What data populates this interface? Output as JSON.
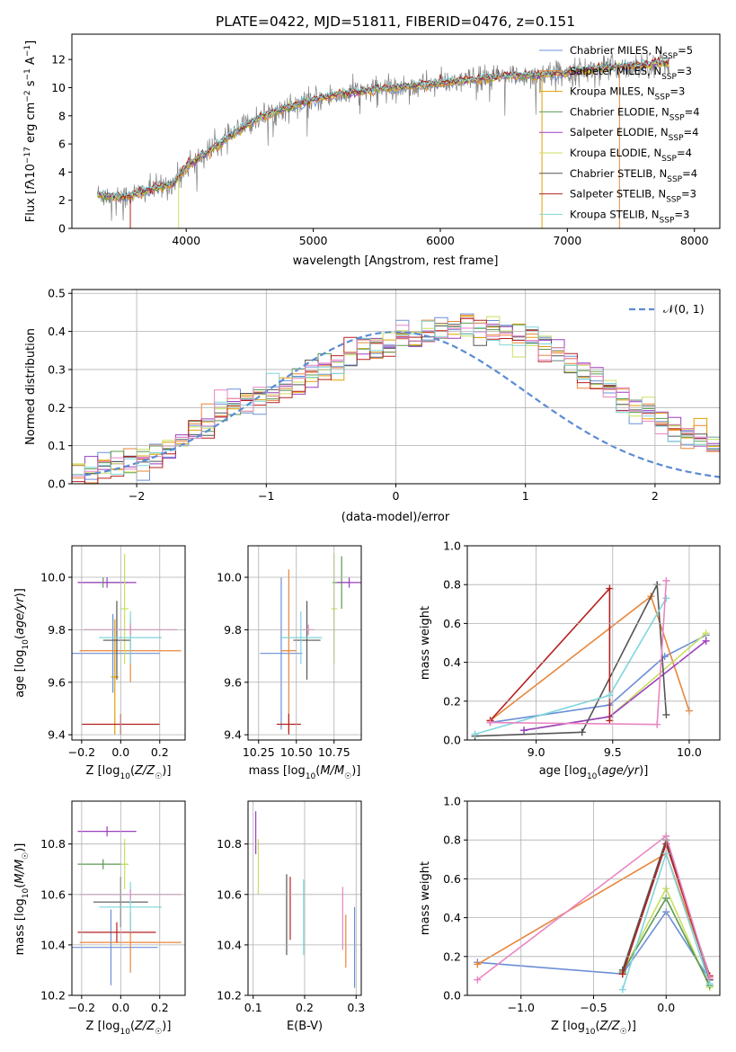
{
  "title": "PLATE=0422, MJD=51811, FIBERID=0476, z=0.151",
  "colors": {
    "chabrier_miles": "#6b8fd6",
    "salpeter_miles": "#e8863a",
    "kroupa_miles": "#e0a000",
    "chabrier_elodie": "#5a9a50",
    "salpeter_elodie": "#9b3fbf",
    "kroupa_elodie": "#c8e060",
    "chabrier_stelib": "#555555",
    "salpeter_stelib": "#b52020",
    "kroupa_stelib": "#7fd6dc",
    "grid": "#b0b0b0",
    "data_gray": "#808080",
    "normal_dashed": "#5b8bd4"
  },
  "chart_data": [
    {
      "type": "line",
      "id": "spectrum",
      "xlabel": "wavelength [Angstrom, rest frame]",
      "ylabel": "Flux [f_λ 10^-17 erg cm^-2 s^-1 A^-1]",
      "xlim": [
        3100,
        8200
      ],
      "ylim": [
        0,
        13.8
      ],
      "xticks": [
        "4000",
        "5000",
        "6000",
        "7000",
        "8000"
      ],
      "yticks": [
        "0",
        "2",
        "4",
        "6",
        "8",
        "10",
        "12"
      ],
      "grid": false,
      "legend_position": "top-right",
      "series": [
        {
          "name": "Chabrier MILES, N_SSP=5",
          "color": "#6b8fd6"
        },
        {
          "name": "Salpeter MILES, N_SSP=3",
          "color": "#e8863a"
        },
        {
          "name": "Kroupa MILES, N_SSP=3",
          "color": "#e0a000"
        },
        {
          "name": "Chabrier ELODIE, N_SSP=4",
          "color": "#5a9a50"
        },
        {
          "name": "Salpeter ELODIE, N_SSP=4",
          "color": "#9b3fbf"
        },
        {
          "name": "Kroupa ELODIE, N_SSP=4",
          "color": "#c8e060"
        },
        {
          "name": "Chabrier STELIB, N_SSP=4",
          "color": "#555555"
        },
        {
          "name": "Salpeter STELIB, N_SSP=3",
          "color": "#b52020"
        },
        {
          "name": "Kroupa STELIB, N_SSP=3",
          "color": "#7fd6dc"
        }
      ],
      "continuum": {
        "x": [
          3300,
          3500,
          3700,
          3900,
          4000,
          4200,
          4400,
          4600,
          4800,
          5000,
          5200,
          5500,
          5800,
          6000,
          6200,
          6500,
          6800,
          7000,
          7200,
          7400,
          7600,
          7800
        ],
        "y": [
          2.4,
          2.2,
          2.7,
          3.2,
          4.4,
          5.6,
          6.9,
          8.0,
          8.6,
          9.1,
          9.5,
          9.9,
          10.1,
          10.3,
          10.5,
          10.8,
          10.9,
          11.1,
          11.3,
          11.5,
          11.6,
          11.8
        ]
      }
    },
    {
      "type": "line",
      "id": "residual-histogram",
      "xlabel": "(data-model)/error",
      "ylabel": "Normed distribution",
      "xlim": [
        -2.5,
        2.5
      ],
      "ylim": [
        0,
        0.51
      ],
      "xticks": [
        "−2",
        "−1",
        "0",
        "1",
        "2"
      ],
      "yticks": [
        "0.0",
        "0.1",
        "0.2",
        "0.3",
        "0.4",
        "0.5"
      ],
      "grid": true,
      "legend_position": "top-right",
      "legend": [
        "𝒩(0, 1)"
      ],
      "bins_start": -2.5,
      "bin_width": 0.1,
      "base": [
        0.02,
        0.03,
        0.04,
        0.05,
        0.06,
        0.07,
        0.08,
        0.1,
        0.11,
        0.14,
        0.16,
        0.18,
        0.2,
        0.21,
        0.23,
        0.24,
        0.26,
        0.27,
        0.29,
        0.3,
        0.32,
        0.33,
        0.35,
        0.36,
        0.37,
        0.38,
        0.39,
        0.4,
        0.41,
        0.41,
        0.42,
        0.41,
        0.41,
        0.4,
        0.39,
        0.38,
        0.36,
        0.34,
        0.32,
        0.29,
        0.27,
        0.25,
        0.22,
        0.2,
        0.18,
        0.15,
        0.14,
        0.13,
        0.12,
        0.11,
        0.1,
        0.09,
        0.08,
        0.07,
        0.07,
        0.06,
        0.05,
        0.05,
        0.04,
        0.03,
        0.03,
        0.03,
        0.03,
        0.03,
        0.03,
        0.03,
        0.03,
        0.03,
        0.03,
        0.03
      ],
      "normal_pdf": {
        "mu": 0,
        "sigma": 1,
        "color": "#5b8bd4"
      }
    },
    {
      "type": "scatter",
      "id": "age-vs-Z",
      "xlabel": "Z [log10(Z/Z☉)]",
      "ylabel": "age [log10(age/yr)]",
      "xlim": [
        -0.25,
        0.33
      ],
      "ylim": [
        9.38,
        10.12
      ],
      "xticks": [
        "−0.2",
        "0.0",
        "0.2"
      ],
      "yticks": [
        "9.4",
        "9.6",
        "9.8",
        "10.0"
      ],
      "grid": true,
      "crosses": [
        {
          "color": "#6b8fd6",
          "x": -0.04,
          "xerr": 0.24,
          "y": 9.71,
          "yerr": 0.15
        },
        {
          "color": "#e8863a",
          "x": 0.05,
          "xerr": 0.26,
          "y": 9.72,
          "yerr": 0.12
        },
        {
          "color": "#e0a000",
          "x": -0.03,
          "xerr": 0.02,
          "y": 9.62,
          "yerr": 0.22
        },
        {
          "color": "#5a9a50",
          "x": -0.09,
          "xerr": 0.13,
          "y": 9.98,
          "yerr": 0.02
        },
        {
          "color": "#9b3fbf",
          "x": -0.07,
          "xerr": 0.15,
          "y": 9.98,
          "yerr": 0.02
        },
        {
          "color": "#c8e060",
          "x": 0.02,
          "xerr": 0.02,
          "y": 9.88,
          "yerr": 0.21
        },
        {
          "color": "#555555",
          "x": -0.02,
          "xerr": 0.07,
          "y": 9.76,
          "yerr": 0.15
        },
        {
          "color": "#b52020",
          "x": 0.0,
          "xerr": 0.2,
          "y": 9.44,
          "yerr": 0.04
        },
        {
          "color": "#7fd6dc",
          "x": 0.05,
          "xerr": 0.16,
          "y": 9.77,
          "yerr": 0.1
        },
        {
          "color": "#ea84c4",
          "x": 0.05,
          "xerr": 0.24,
          "y": 9.8,
          "yerr": 0.02
        }
      ]
    },
    {
      "type": "scatter",
      "id": "age-vs-mass",
      "xlabel": "mass [log10(M/M☉)]",
      "ylabel": "",
      "xlim": [
        10.18,
        10.93
      ],
      "ylim": [
        9.38,
        10.12
      ],
      "xticks": [
        "10.25",
        "10.50",
        "10.75"
      ],
      "yticks": [
        "9.4",
        "9.6",
        "9.8",
        "10.0"
      ],
      "grid": true,
      "crosses": [
        {
          "color": "#6b8fd6",
          "x": 10.4,
          "xerr": 0.14,
          "y": 9.71,
          "yerr": 0.29
        },
        {
          "color": "#e8863a",
          "x": 10.45,
          "xerr": 0.05,
          "y": 9.72,
          "yerr": 0.31
        },
        {
          "color": "#5a9a50",
          "x": 10.8,
          "xerr": 0.06,
          "y": 9.98,
          "yerr": 0.1
        },
        {
          "color": "#9b3fbf",
          "x": 10.85,
          "xerr": 0.08,
          "y": 9.98,
          "yerr": 0.02
        },
        {
          "color": "#c8e060",
          "x": 10.75,
          "xerr": 0.02,
          "y": 9.88,
          "yerr": 0.21
        },
        {
          "color": "#555555",
          "x": 10.57,
          "xerr": 0.09,
          "y": 9.76,
          "yerr": 0.15
        },
        {
          "color": "#b52020",
          "x": 10.45,
          "xerr": 0.08,
          "y": 9.44,
          "yerr": 0.04
        },
        {
          "color": "#7fd6dc",
          "x": 10.53,
          "xerr": 0.14,
          "y": 9.77,
          "yerr": 0.1
        },
        {
          "color": "#ea84c4",
          "x": 10.58,
          "xerr": 0.04,
          "y": 9.8,
          "yerr": 0.02
        }
      ]
    },
    {
      "type": "line",
      "id": "mass-weight-vs-age",
      "xlabel": "age [log10(age/yr)]",
      "ylabel": "mass weight",
      "xlim": [
        8.55,
        10.2
      ],
      "ylim": [
        0,
        1
      ],
      "xticks": [
        "9.0",
        "9.5",
        "10.0"
      ],
      "yticks": [
        "0.0",
        "0.2",
        "0.4",
        "0.6",
        "0.8",
        "1.0"
      ],
      "grid": true,
      "series": [
        {
          "color": "#6b8fd6",
          "x": [
            8.7,
            9.48,
            9.84,
            10.11
          ],
          "y": [
            0.09,
            0.18,
            0.43,
            0.54
          ]
        },
        {
          "color": "#e8863a",
          "x": [
            8.7,
            9.75,
            10.0
          ],
          "y": [
            0.1,
            0.74,
            0.15
          ]
        },
        {
          "color": "#c8e060",
          "x": [
            8.92,
            9.48,
            10.11
          ],
          "y": [
            0.05,
            0.12,
            0.55
          ]
        },
        {
          "color": "#9b3fbf",
          "x": [
            8.92,
            9.48,
            10.11
          ],
          "y": [
            0.05,
            0.12,
            0.51
          ]
        },
        {
          "color": "#555555",
          "x": [
            8.6,
            9.3,
            9.79,
            9.85
          ],
          "y": [
            0.02,
            0.04,
            0.8,
            0.13
          ]
        },
        {
          "color": "#b52020",
          "x": [
            8.7,
            9.48,
            9.48
          ],
          "y": [
            0.1,
            0.78,
            0.1
          ]
        },
        {
          "color": "#7fd6dc",
          "x": [
            8.6,
            9.48,
            9.85
          ],
          "y": [
            0.03,
            0.23,
            0.73
          ]
        },
        {
          "color": "#ea84c4",
          "x": [
            8.7,
            9.79,
            9.85
          ],
          "y": [
            0.09,
            0.08,
            0.82
          ]
        }
      ]
    },
    {
      "type": "scatter",
      "id": "mass-vs-Z",
      "xlabel": "Z [log10(Z/Z☉)]",
      "ylabel": "mass [log10(M/M☉)]",
      "xlim": [
        -0.25,
        0.33
      ],
      "ylim": [
        10.2,
        10.97
      ],
      "xticks": [
        "−0.2",
        "0.0",
        "0.2"
      ],
      "yticks": [
        "10.2",
        "10.4",
        "10.6",
        "10.8"
      ],
      "grid": true,
      "crosses": [
        {
          "color": "#6b8fd6",
          "x": -0.05,
          "xerr": 0.24,
          "y": 10.39,
          "yerr": 0.15
        },
        {
          "color": "#e8863a",
          "x": 0.05,
          "xerr": 0.26,
          "y": 10.41,
          "yerr": 0.12
        },
        {
          "color": "#5a9a50",
          "x": -0.09,
          "xerr": 0.13,
          "y": 10.72,
          "yerr": 0.02
        },
        {
          "color": "#9b3fbf",
          "x": -0.07,
          "xerr": 0.15,
          "y": 10.85,
          "yerr": 0.02
        },
        {
          "color": "#c8e060",
          "x": 0.02,
          "xerr": 0.02,
          "y": 10.72,
          "yerr": 0.1
        },
        {
          "color": "#555555",
          "x": 0.0,
          "xerr": 0.14,
          "y": 10.57,
          "yerr": 0.1
        },
        {
          "color": "#b52020",
          "x": -0.02,
          "xerr": 0.2,
          "y": 10.45,
          "yerr": 0.04
        },
        {
          "color": "#7fd6dc",
          "x": 0.05,
          "xerr": 0.16,
          "y": 10.55,
          "yerr": 0.1
        },
        {
          "color": "#ea84c4",
          "x": 0.05,
          "xerr": 0.26,
          "y": 10.6,
          "yerr": 0.02
        }
      ]
    },
    {
      "type": "scatter",
      "id": "mass-vs-ebv",
      "xlabel": "E(B-V)",
      "ylabel": "",
      "xlim": [
        0.09,
        0.31
      ],
      "ylim": [
        10.2,
        10.97
      ],
      "xticks": [
        "0.1",
        "0.2",
        "0.3"
      ],
      "yticks": [
        "10.2",
        "10.4",
        "10.6",
        "10.8"
      ],
      "grid": true,
      "bars": [
        {
          "color": "#9b3fbf",
          "x": 0.105,
          "y0": 10.76,
          "y1": 10.93
        },
        {
          "color": "#c8e060",
          "x": 0.11,
          "y0": 10.6,
          "y1": 10.82
        },
        {
          "color": "#555555",
          "x": 0.165,
          "y0": 10.36,
          "y1": 10.68
        },
        {
          "color": "#b52020",
          "x": 0.172,
          "y0": 10.42,
          "y1": 10.67
        },
        {
          "color": "#7fd6dc",
          "x": 0.198,
          "y0": 10.36,
          "y1": 10.66
        },
        {
          "color": "#ea84c4",
          "x": 0.274,
          "y0": 10.38,
          "y1": 10.63
        },
        {
          "color": "#e8863a",
          "x": 0.28,
          "y0": 10.31,
          "y1": 10.52
        },
        {
          "color": "#6b8fd6",
          "x": 0.297,
          "y0": 10.23,
          "y1": 10.55
        }
      ]
    },
    {
      "type": "line",
      "id": "mass-weight-vs-Z",
      "xlabel": "Z [log10(Z/Z☉)]",
      "ylabel": "mass weight",
      "xlim": [
        -1.37,
        0.37
      ],
      "ylim": [
        0,
        1
      ],
      "xticks": [
        "−1.0",
        "−0.5",
        "0.0"
      ],
      "yticks": [
        "0.0",
        "0.2",
        "0.4",
        "0.6",
        "0.8",
        "1.0"
      ],
      "grid": true,
      "series": [
        {
          "color": "#6b8fd6",
          "x": [
            -1.3,
            -0.3,
            0.0,
            0.3
          ],
          "y": [
            0.17,
            0.11,
            0.43,
            0.08
          ]
        },
        {
          "color": "#e8863a",
          "x": [
            -1.3,
            0.0,
            0.3
          ],
          "y": [
            0.16,
            0.73,
            0.1
          ]
        },
        {
          "color": "#c8e060",
          "x": [
            -0.3,
            0.0,
            0.3
          ],
          "y": [
            0.12,
            0.55,
            0.04
          ]
        },
        {
          "color": "#5a9a50",
          "x": [
            -0.3,
            0.0,
            0.3
          ],
          "y": [
            0.12,
            0.5,
            0.05
          ]
        },
        {
          "color": "#555555",
          "x": [
            -0.3,
            0.0,
            0.3
          ],
          "y": [
            0.13,
            0.8,
            0.08
          ]
        },
        {
          "color": "#b52020",
          "x": [
            -0.3,
            0.0,
            0.3
          ],
          "y": [
            0.11,
            0.78,
            0.1
          ]
        },
        {
          "color": "#7fd6dc",
          "x": [
            -0.3,
            0.0,
            0.3
          ],
          "y": [
            0.03,
            0.73,
            0.06
          ]
        },
        {
          "color": "#ea84c4",
          "x": [
            -1.3,
            0.0,
            0.3
          ],
          "y": [
            0.08,
            0.82,
            0.09
          ]
        }
      ]
    }
  ]
}
